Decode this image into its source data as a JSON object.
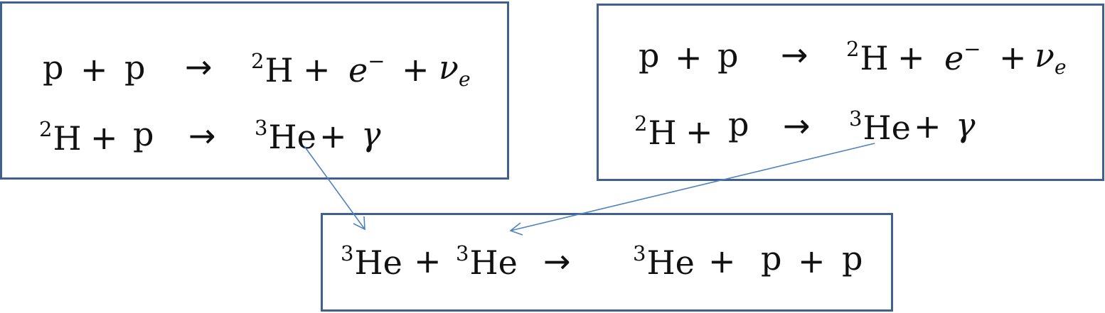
{
  "reaction_boxes": [
    {
      "id": "left",
      "equations": [
        {
          "lhs": [
            {
              "sup": "",
              "sym": "p"
            },
            {
              "sup": "",
              "sym": "p"
            }
          ],
          "arrow": "→",
          "rhs": [
            {
              "sup": "2",
              "sym": "H"
            },
            {
              "sym": "e",
              "sup_after": "−"
            },
            {
              "sym": "ν",
              "sub": "e"
            }
          ]
        },
        {
          "lhs": [
            {
              "sup": "2",
              "sym": "H"
            },
            {
              "sup": "",
              "sym": "p"
            }
          ],
          "arrow": "→",
          "rhs": [
            {
              "sup": "3",
              "sym": "He"
            },
            {
              "sym": "γ"
            }
          ]
        }
      ]
    },
    {
      "id": "right",
      "equations": [
        {
          "lhs": [
            {
              "sup": "",
              "sym": "p"
            },
            {
              "sup": "",
              "sym": "p"
            }
          ],
          "arrow": "→",
          "rhs": [
            {
              "sup": "2",
              "sym": "H"
            },
            {
              "sym": "e",
              "sup_after": "−"
            },
            {
              "sym": "ν",
              "sub": "e"
            }
          ]
        },
        {
          "lhs": [
            {
              "sup": "2",
              "sym": "H"
            },
            {
              "sup": "",
              "sym": "p"
            }
          ],
          "arrow": "→",
          "rhs": [
            {
              "sup": "3",
              "sym": "He"
            },
            {
              "sym": "γ"
            }
          ]
        }
      ]
    },
    {
      "id": "bottom",
      "equations": [
        {
          "lhs": [
            {
              "sup": "3",
              "sym": "He"
            },
            {
              "sup": "3",
              "sym": "He"
            }
          ],
          "arrow": "→",
          "rhs": [
            {
              "sup": "3",
              "sym": "He"
            },
            {
              "sym": "p"
            },
            {
              "sym": "p"
            }
          ]
        }
      ]
    }
  ],
  "plus": "+",
  "colors": {
    "box_border": "#3f6090",
    "connector": "#4f81bd",
    "text": "#111111"
  },
  "connectors": [
    {
      "from": "left box ³He",
      "to": "bottom box first ³He"
    },
    {
      "from": "right box ³He",
      "to": "bottom box second ³He"
    }
  ]
}
